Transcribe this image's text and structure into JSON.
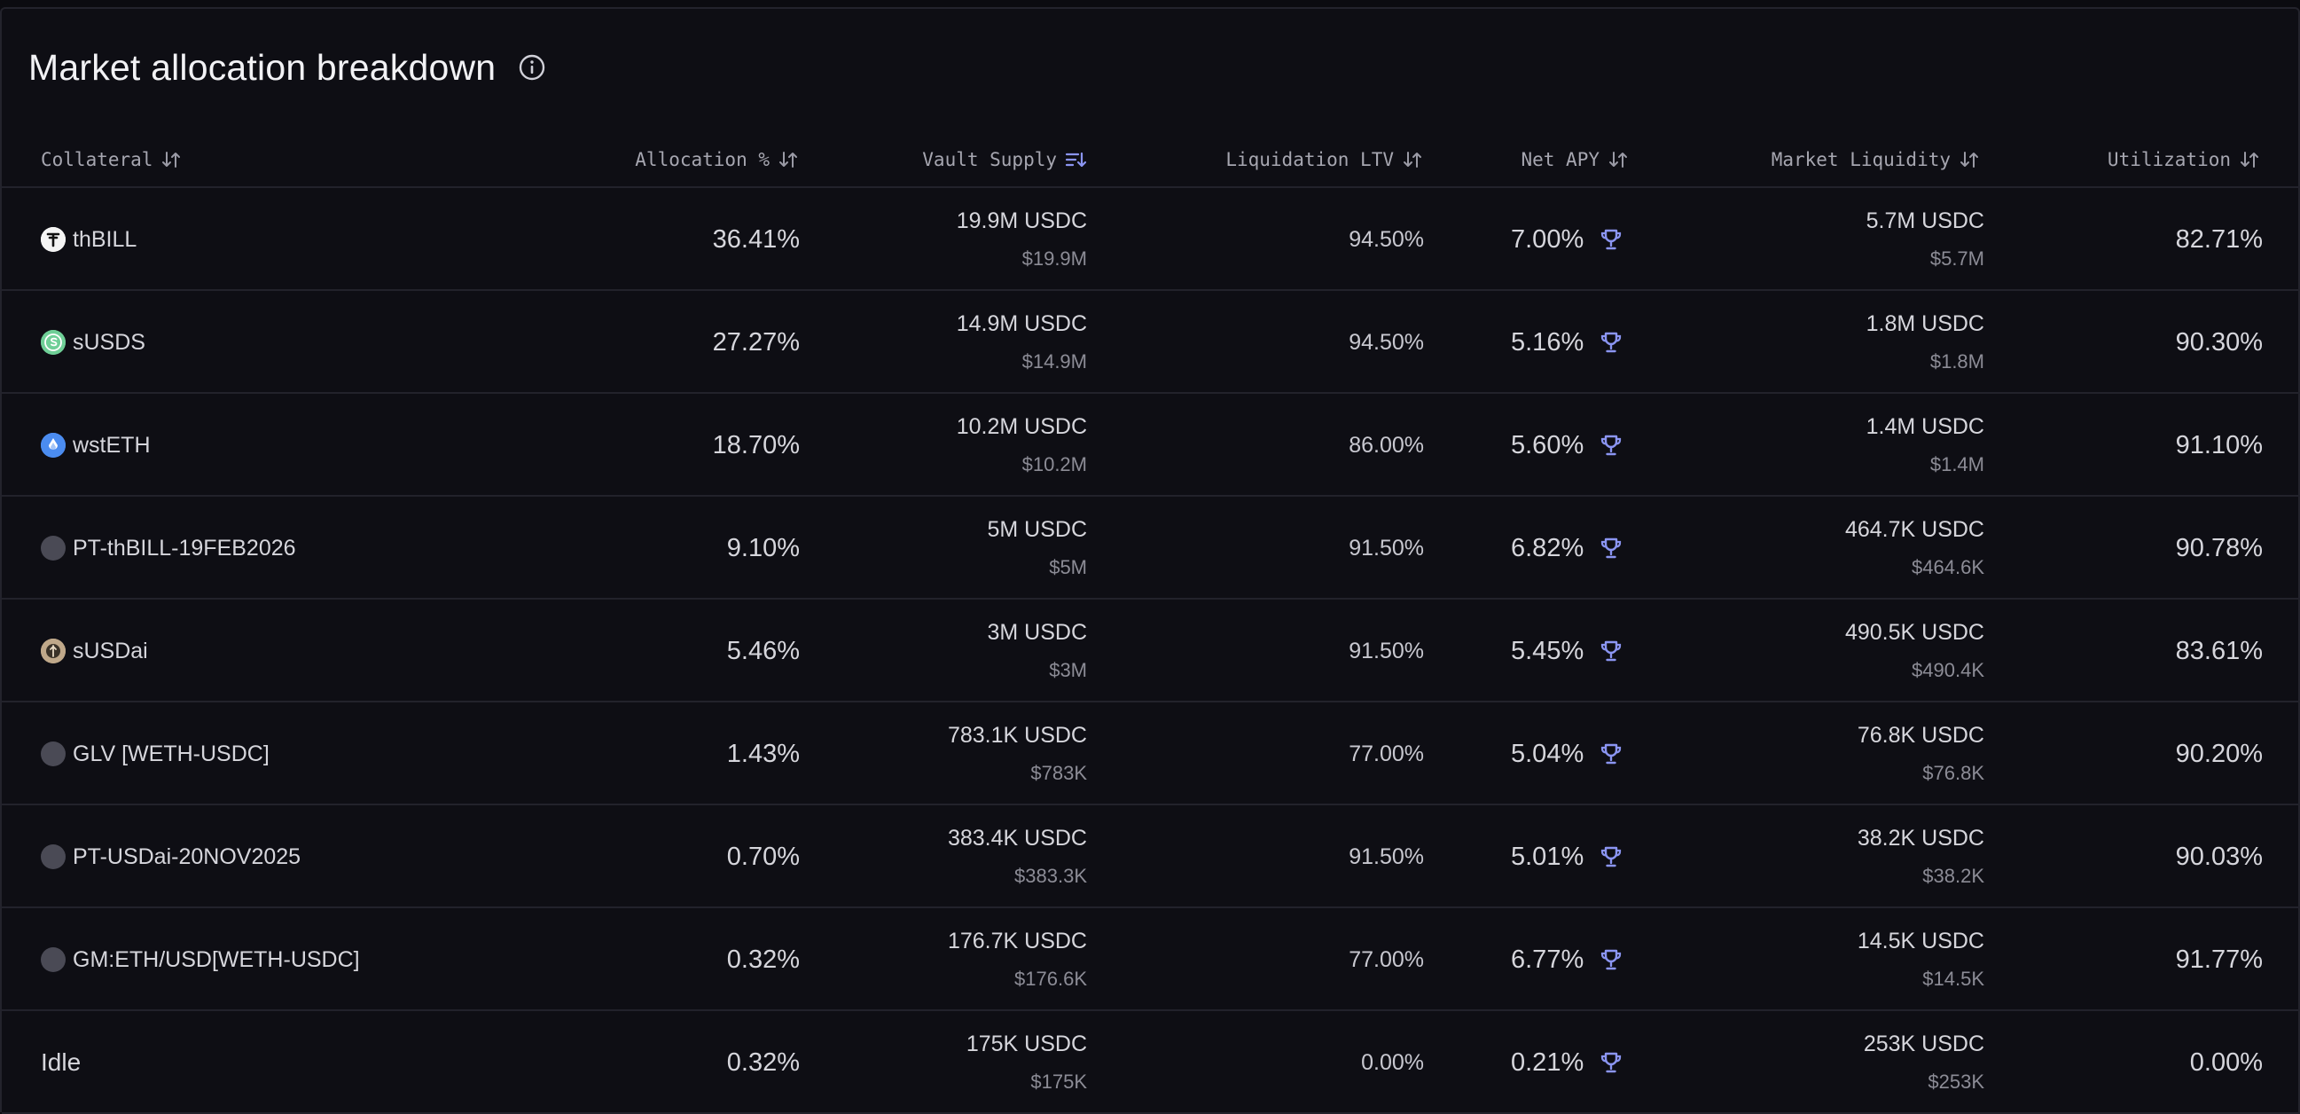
{
  "header": {
    "title": "Market allocation breakdown"
  },
  "columns": {
    "collateral": "Collateral",
    "allocation": "Allocation %",
    "vault_supply": "Vault Supply",
    "liq_ltv": "Liquidation LTV",
    "net_apy": "Net APY",
    "market_liquidity": "Market Liquidity",
    "utilization": "Utilization"
  },
  "rows": [
    {
      "collateral": "thBILL",
      "icon": "thbill-token-icon",
      "allocation": "36.41%",
      "vault_supply": "19.9M USDC",
      "vault_supply_usd": "$19.9M",
      "liq_ltv": "94.50%",
      "net_apy": "7.00%",
      "market_liquidity": "5.7M USDC",
      "market_liquidity_usd": "$5.7M",
      "utilization": "82.71%"
    },
    {
      "collateral": "sUSDS",
      "icon": "susds-token-icon",
      "allocation": "27.27%",
      "vault_supply": "14.9M USDC",
      "vault_supply_usd": "$14.9M",
      "liq_ltv": "94.50%",
      "net_apy": "5.16%",
      "market_liquidity": "1.8M USDC",
      "market_liquidity_usd": "$1.8M",
      "utilization": "90.30%"
    },
    {
      "collateral": "wstETH",
      "icon": "wsteth-token-icon",
      "allocation": "18.70%",
      "vault_supply": "10.2M USDC",
      "vault_supply_usd": "$10.2M",
      "liq_ltv": "86.00%",
      "net_apy": "5.60%",
      "market_liquidity": "1.4M USDC",
      "market_liquidity_usd": "$1.4M",
      "utilization": "91.10%"
    },
    {
      "collateral": "PT-thBILL-19FEB2026",
      "icon": "placeholder-token-icon",
      "allocation": "9.10%",
      "vault_supply": "5M USDC",
      "vault_supply_usd": "$5M",
      "liq_ltv": "91.50%",
      "net_apy": "6.82%",
      "market_liquidity": "464.7K USDC",
      "market_liquidity_usd": "$464.6K",
      "utilization": "90.78%"
    },
    {
      "collateral": "sUSDai",
      "icon": "susdai-token-icon",
      "allocation": "5.46%",
      "vault_supply": "3M USDC",
      "vault_supply_usd": "$3M",
      "liq_ltv": "91.50%",
      "net_apy": "5.45%",
      "market_liquidity": "490.5K USDC",
      "market_liquidity_usd": "$490.4K",
      "utilization": "83.61%"
    },
    {
      "collateral": "GLV [WETH-USDC]",
      "icon": "placeholder-token-icon",
      "allocation": "1.43%",
      "vault_supply": "783.1K USDC",
      "vault_supply_usd": "$783K",
      "liq_ltv": "77.00%",
      "net_apy": "5.04%",
      "market_liquidity": "76.8K USDC",
      "market_liquidity_usd": "$76.8K",
      "utilization": "90.20%"
    },
    {
      "collateral": "PT-USDai-20NOV2025",
      "icon": "placeholder-token-icon",
      "allocation": "0.70%",
      "vault_supply": "383.4K USDC",
      "vault_supply_usd": "$383.3K",
      "liq_ltv": "91.50%",
      "net_apy": "5.01%",
      "market_liquidity": "38.2K USDC",
      "market_liquidity_usd": "$38.2K",
      "utilization": "90.03%"
    },
    {
      "collateral": "GM:ETH/USD[WETH-USDC]",
      "icon": "placeholder-token-icon",
      "allocation": "0.32%",
      "vault_supply": "176.7K USDC",
      "vault_supply_usd": "$176.6K",
      "liq_ltv": "77.00%",
      "net_apy": "6.77%",
      "market_liquidity": "14.5K USDC",
      "market_liquidity_usd": "$14.5K",
      "utilization": "91.77%"
    },
    {
      "collateral": "Idle",
      "icon": "",
      "allocation": "0.32%",
      "vault_supply": "175K USDC",
      "vault_supply_usd": "$175K",
      "liq_ltv": "0.00%",
      "net_apy": "0.21%",
      "market_liquidity": "253K USDC",
      "market_liquidity_usd": "$253K",
      "utilization": "0.00%"
    }
  ],
  "colors": {
    "background": "#0e0e14",
    "accent": "#8b95f2",
    "text": "#d6d6dc",
    "muted": "#8c8c96"
  }
}
